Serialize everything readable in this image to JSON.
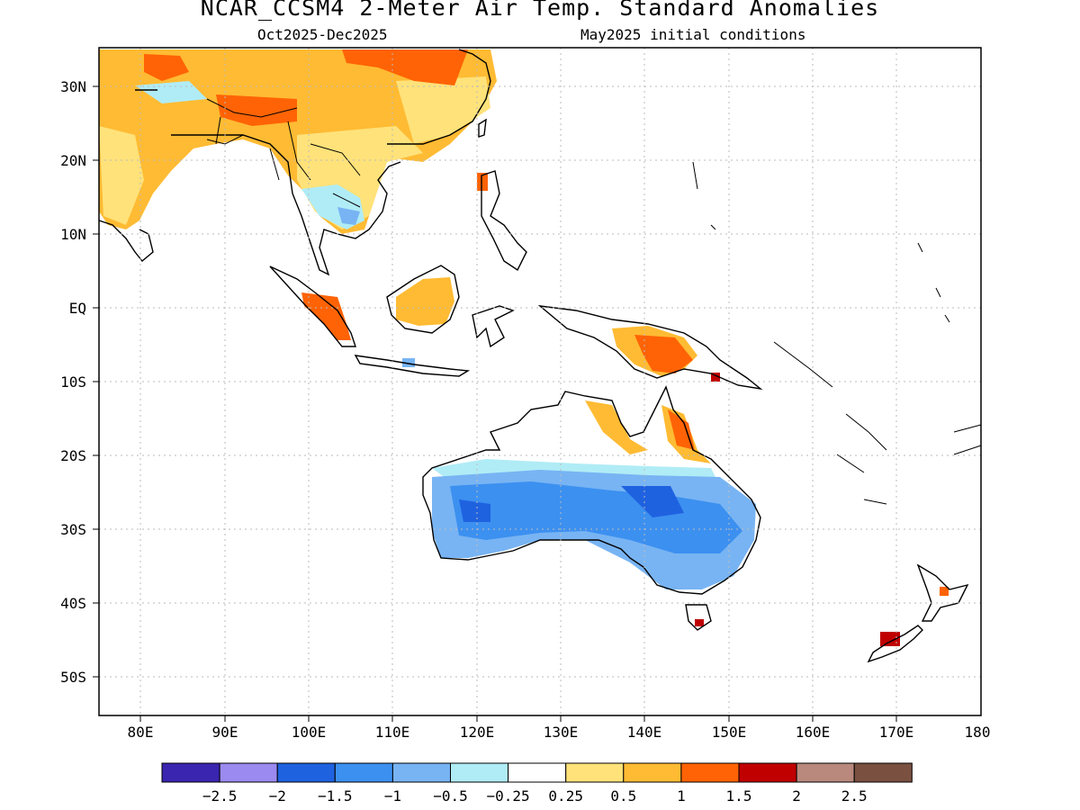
{
  "title": "NCAR_CCSM4 2-Meter Air Temp. Standard Anomalies",
  "subtitle_left": "Oct2025-Dec2025",
  "subtitle_right": "May2025 initial conditions",
  "lat_labels": [
    "30N",
    "20N",
    "10N",
    "EQ",
    "10S",
    "20S",
    "30S",
    "40S",
    "50S"
  ],
  "lon_labels": [
    "80E",
    "90E",
    "100E",
    "110E",
    "120E",
    "130E",
    "140E",
    "150E",
    "160E",
    "170E",
    "180"
  ],
  "colorbar": {
    "colors": [
      "#3a25b0",
      "#9b8af0",
      "#1f62e0",
      "#3c90f0",
      "#78b4f3",
      "#b0ecf6",
      "#ffffff",
      "#ffe27a",
      "#ffbb33",
      "#ff6305",
      "#c00000",
      "#b8897c",
      "#7a5041"
    ],
    "labels": [
      "-2.5",
      "-2",
      "-1.5",
      "-1",
      "-0.5",
      "-0.25",
      "0.25",
      "0.5",
      "1",
      "1.5",
      "2",
      "2.5"
    ]
  },
  "colors": {
    "land_outline": "#000000",
    "grid": "#bbbbbb"
  }
}
